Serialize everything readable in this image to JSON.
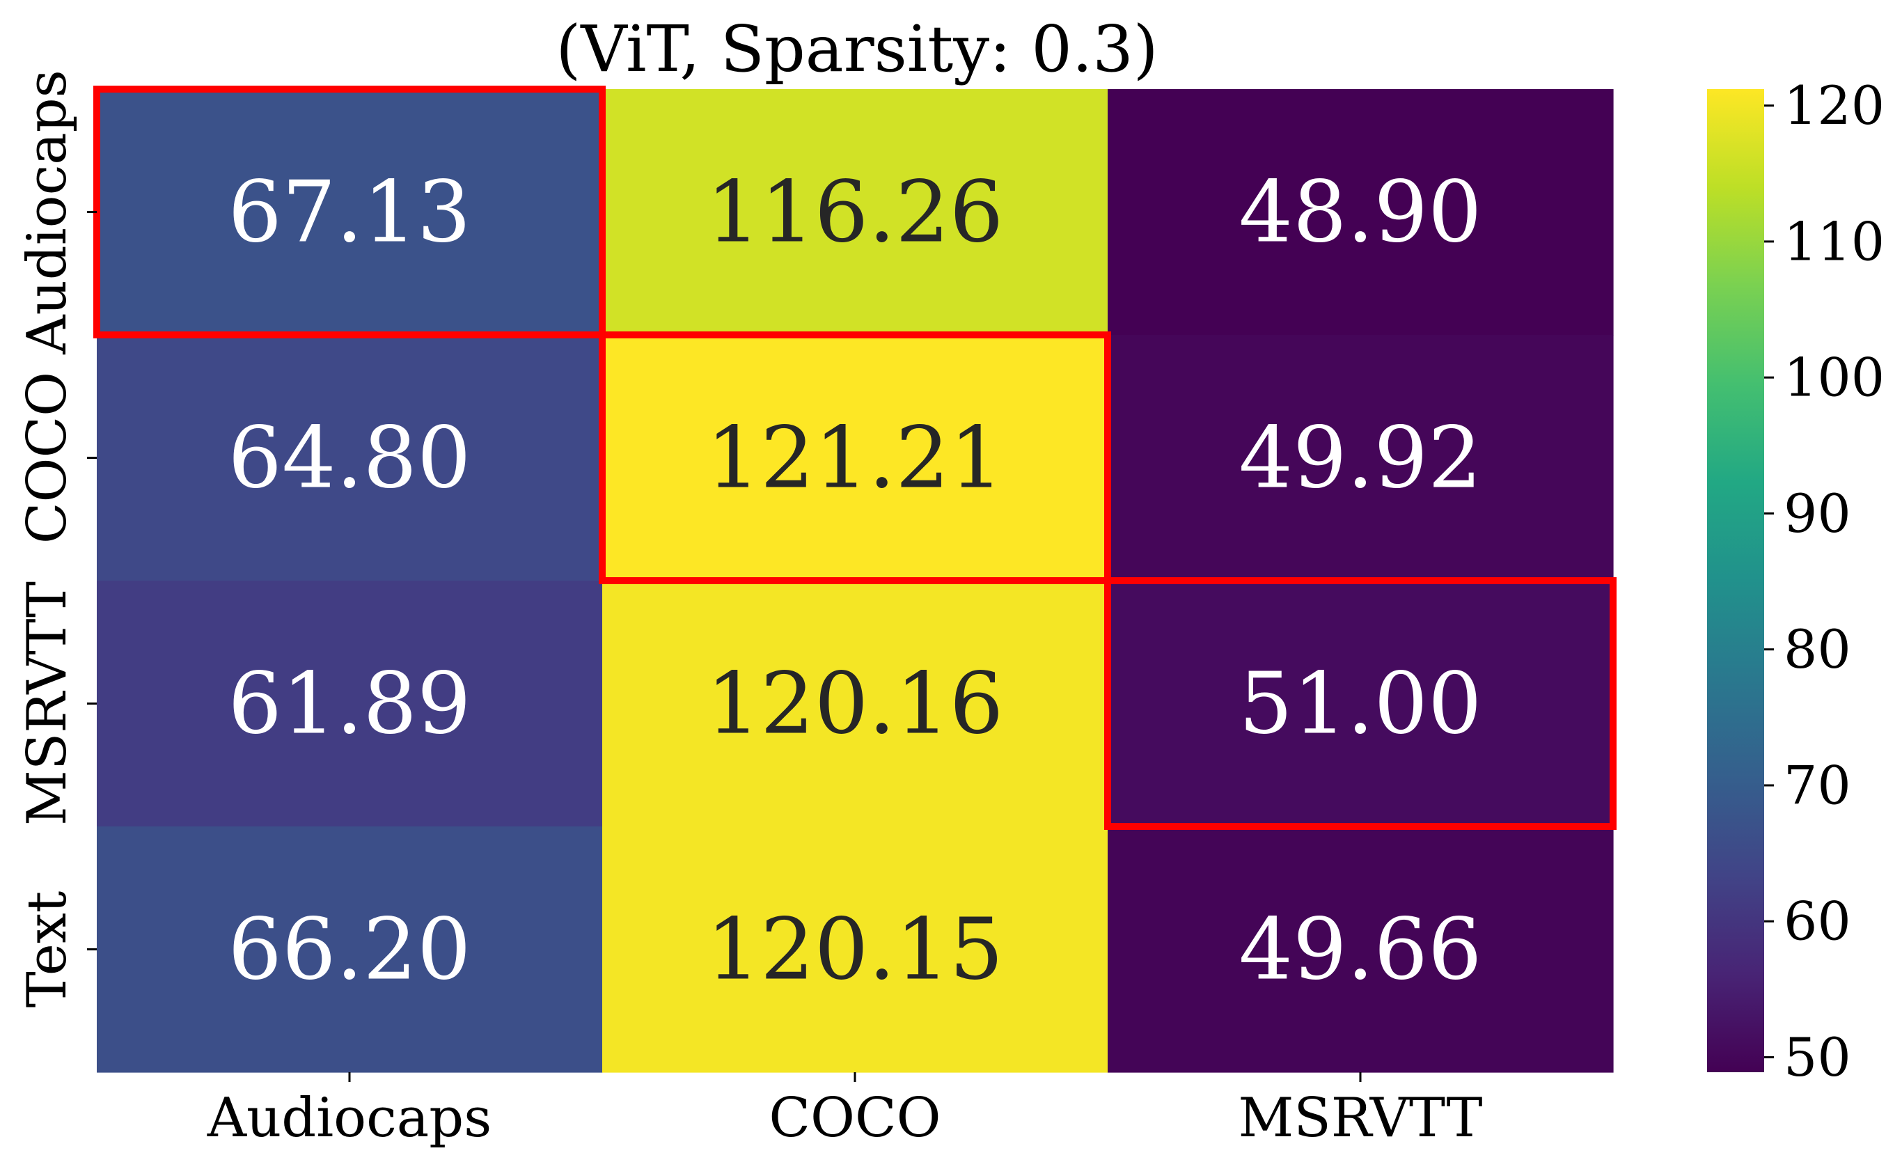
{
  "chart_data": {
    "type": "heatmap",
    "title": "(ViT, Sparsity: 0.3)",
    "x_categories": [
      "Audiocaps",
      "COCO",
      "MSRVTT"
    ],
    "y_categories": [
      "Audiocaps",
      "COCO",
      "MSRVTT",
      "Text"
    ],
    "values": [
      [
        67.13,
        116.26,
        48.9
      ],
      [
        64.8,
        121.21,
        49.92
      ],
      [
        61.89,
        120.16,
        51.0
      ],
      [
        66.2,
        120.15,
        49.66
      ]
    ],
    "value_labels": [
      [
        "67.13",
        "116.26",
        "48.90"
      ],
      [
        "64.80",
        "121.21",
        "49.92"
      ],
      [
        "61.89",
        "120.16",
        "51.00"
      ],
      [
        "66.20",
        "120.15",
        "49.66"
      ]
    ],
    "highlighted_cells": [
      [
        0,
        0
      ],
      [
        1,
        1
      ],
      [
        2,
        2
      ]
    ],
    "highlight_color": "#ff0000",
    "colormap": "viridis",
    "color_range": [
      48.9,
      121.21
    ],
    "colorbar_ticks": [
      50,
      60,
      70,
      80,
      90,
      100,
      110,
      120
    ],
    "colorbar_tick_labels": [
      "50",
      "60",
      "70",
      "80",
      "90",
      "100",
      "110",
      "120"
    ],
    "xlabel": "",
    "ylabel": ""
  }
}
